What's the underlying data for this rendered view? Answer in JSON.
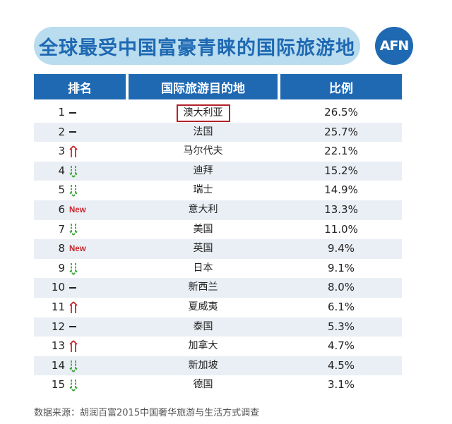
{
  "title": "全球最受中国富豪青睐的国际旅游地",
  "logo_text": "AFN",
  "header": {
    "rank": "排名",
    "destination": "国际旅游目的地",
    "ratio": "比例"
  },
  "new_label": "New",
  "colors": {
    "blue": "#1f69b3",
    "light_blue": "#b9dcef",
    "up": "#c8282d",
    "down": "#3aa536",
    "stripe": "#eaeff5"
  },
  "chart_data": {
    "type": "table",
    "title": "全球最受中国富豪青睐的国际旅游地",
    "columns": [
      "排名",
      "国际旅游目的地",
      "比例"
    ],
    "rows": [
      {
        "rank": "1",
        "trend": "same",
        "destination": "澳大利亚",
        "ratio": "26.5%",
        "highlight": true
      },
      {
        "rank": "2",
        "trend": "same",
        "destination": "法国",
        "ratio": "25.7%"
      },
      {
        "rank": "3",
        "trend": "up",
        "destination": "马尔代夫",
        "ratio": "22.1%"
      },
      {
        "rank": "4",
        "trend": "down",
        "destination": "迪拜",
        "ratio": "15.2%"
      },
      {
        "rank": "5",
        "trend": "down",
        "destination": "瑞士",
        "ratio": "14.9%"
      },
      {
        "rank": "6",
        "trend": "new",
        "destination": "意大利",
        "ratio": "13.3%"
      },
      {
        "rank": "7",
        "trend": "down",
        "destination": "美国",
        "ratio": "11.0%"
      },
      {
        "rank": "8",
        "trend": "new",
        "destination": "英国",
        "ratio": "9.4%"
      },
      {
        "rank": "9",
        "trend": "down",
        "destination": "日本",
        "ratio": "9.1%"
      },
      {
        "rank": "10",
        "trend": "same",
        "destination": "新西兰",
        "ratio": "8.0%"
      },
      {
        "rank": "11",
        "trend": "up",
        "destination": "夏威夷",
        "ratio": "6.1%"
      },
      {
        "rank": "12",
        "trend": "same",
        "destination": "泰国",
        "ratio": "5.3%"
      },
      {
        "rank": "13",
        "trend": "up",
        "destination": "加拿大",
        "ratio": "4.7%"
      },
      {
        "rank": "14",
        "trend": "down",
        "destination": "新加坡",
        "ratio": "4.5%"
      },
      {
        "rank": "15",
        "trend": "down",
        "destination": "德国",
        "ratio": "3.1%"
      }
    ]
  },
  "footer": "数据来源：胡润百富2015中国奢华旅游与生活方式调查"
}
